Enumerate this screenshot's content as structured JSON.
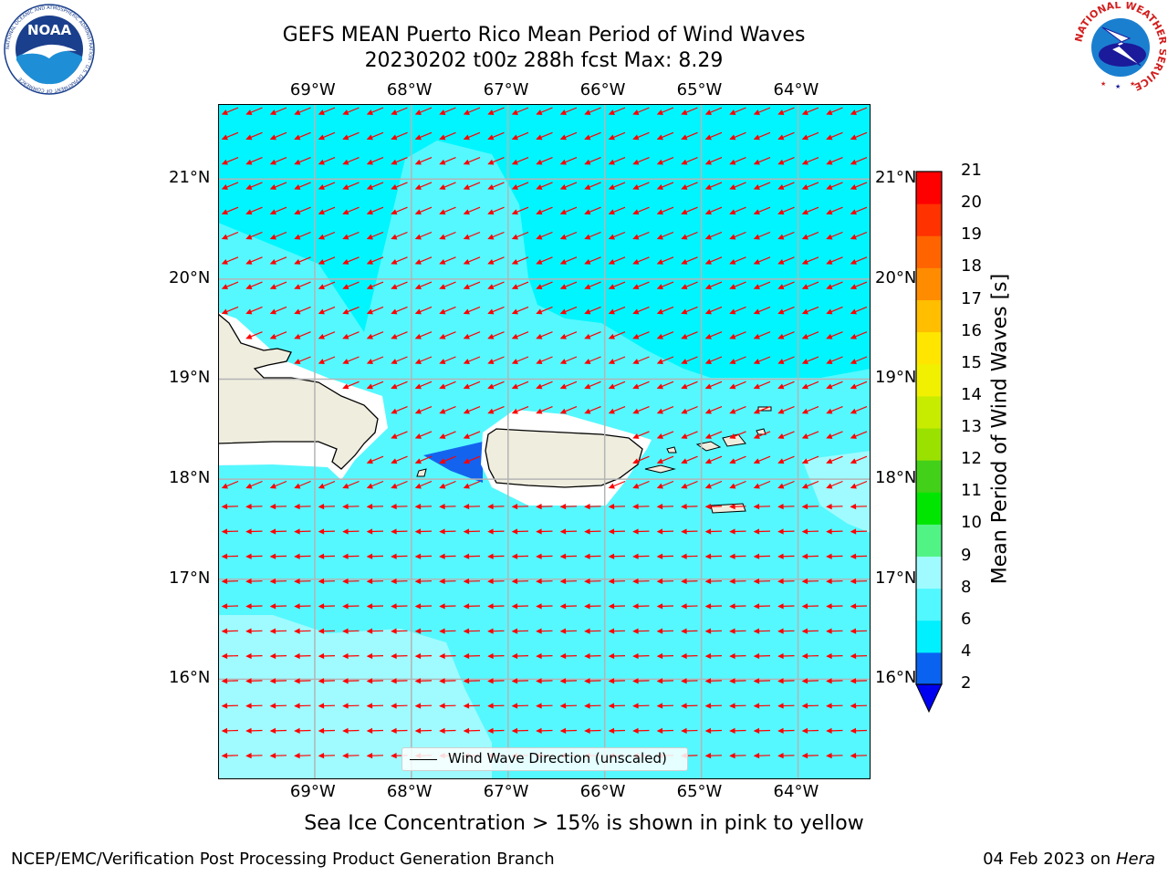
{
  "header": {
    "title_line1": "GEFS MEAN Puerto Rico Mean Period of Wind Waves",
    "title_line2": "20230202 t00z 288h fcst   Max: 8.29"
  },
  "logos": {
    "noaa_text": "NOAA",
    "noaa_ring": "NATIONAL OCEANIC AND ATMOSPHERIC ADMINISTRATION · U.S. DEPARTMENT OF COMMERCE",
    "nws_ring": "NATIONAL WEATHER SERVICE"
  },
  "chart_data": {
    "type": "heatmap",
    "title": "GEFS MEAN Puerto Rico Mean Period of Wind Waves",
    "lon_ticks": [
      "69°W",
      "68°W",
      "67°W",
      "66°W",
      "65°W",
      "64°W"
    ],
    "lat_ticks": [
      "21°N",
      "20°N",
      "19°N",
      "18°N",
      "17°N",
      "16°N"
    ],
    "lon_range": [
      -70.0,
      -63.25
    ],
    "lat_range": [
      15.0,
      21.75
    ],
    "grid": true,
    "colorbar": {
      "label": "Mean Period of Wind Waves [s]",
      "ticks": [
        2,
        4,
        6,
        8,
        9,
        10,
        11,
        12,
        13,
        14,
        15,
        16,
        17,
        18,
        19,
        20,
        21
      ],
      "colors": [
        "#0a62f0",
        "#00f0ff",
        "#52f8ff",
        "#9ffbff",
        "#52f385",
        "#00e600",
        "#42d019",
        "#9be100",
        "#c8ec00",
        "#f0f000",
        "#ffe600",
        "#ffbe00",
        "#ff8c00",
        "#ff6400",
        "#ff3200",
        "#ff0000"
      ],
      "extend_min_color": "#0000f0"
    },
    "legend": {
      "label": "Wind Wave Direction (unscaled)",
      "placement": "lower-center"
    },
    "max_value": 8.29,
    "arrow_direction": "toward west-southwest",
    "arrow_color": "#ff0000"
  },
  "subtitle": "Sea Ice Concentration > 15% is shown in pink to yellow",
  "footer": {
    "left": "NCEP/EMC/Verification Post Processing Product Generation Branch",
    "right_date": "04 Feb 2023 on ",
    "right_host": "Hera"
  }
}
